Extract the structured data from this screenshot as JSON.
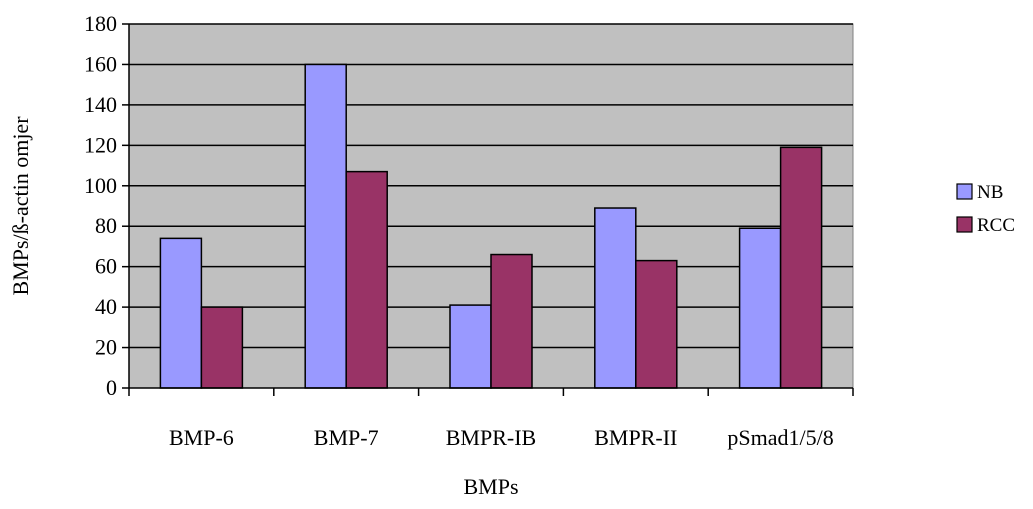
{
  "chart_data": {
    "type": "bar",
    "categories": [
      "BMP-6",
      "BMP-7",
      "BMPR-IB",
      "BMPR-II",
      "pSmad1/5/8"
    ],
    "series": [
      {
        "name": "NB",
        "values": [
          74,
          160,
          41,
          89,
          79
        ],
        "color": "#9999ff"
      },
      {
        "name": "RCC",
        "values": [
          40,
          107,
          66,
          63,
          119
        ],
        "color": "#993366"
      }
    ],
    "xlabel": "BMPs",
    "ylabel": "BMPs/ß-actin  omjer",
    "ylim": [
      0,
      180
    ],
    "yticks": [
      0,
      20,
      40,
      60,
      80,
      100,
      120,
      140,
      160,
      180
    ],
    "grid": true,
    "plot_background": "#c0c0c0",
    "legend_position": "right"
  }
}
